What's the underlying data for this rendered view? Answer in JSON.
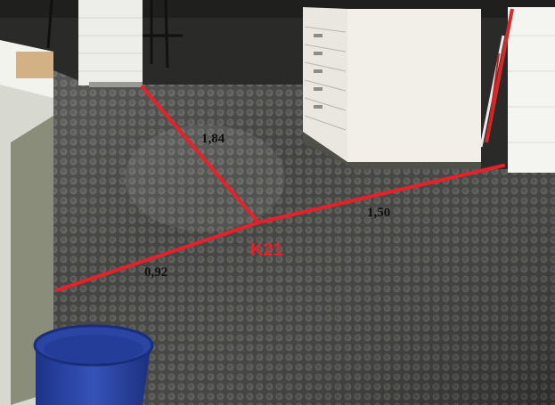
{
  "annotations": {
    "point_label": "K21",
    "measurements": {
      "top_left": "1,84",
      "right": "1,50",
      "bottom_left": "0,92"
    }
  },
  "colors": {
    "measure_line": "#e8202a",
    "point_label": "#e8202a",
    "floor": "#3a3b38",
    "floor_dot": "#5c5d58",
    "wall": "#ececea",
    "bucket": "#2c48a8"
  }
}
